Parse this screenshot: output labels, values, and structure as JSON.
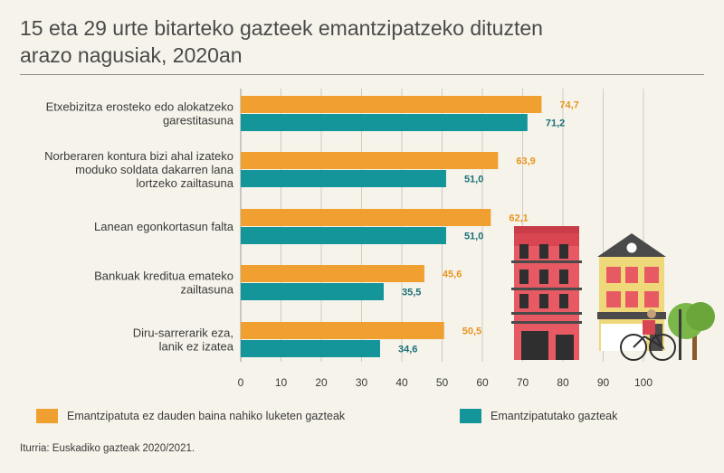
{
  "title_lines": [
    "15 eta 29 urte bitarteko gazteek emantzipatzeko dituzten",
    "arazo nagusiak, 2020an"
  ],
  "source": "Iturria: Euskadiko gazteak 2020/2021.",
  "colors": {
    "orange": "#f0a030",
    "teal": "#13959a",
    "value_orange": "#e8951e",
    "value_teal": "#1a6f79"
  },
  "chart_data": {
    "type": "bar",
    "orientation": "horizontal",
    "categories": [
      [
        "Etxebizitza erosteko edo alokatzeko",
        "garestitasuna"
      ],
      [
        "Norberaren kontura bizi ahal izateko",
        "moduko soldata dakarren lana",
        "lortzeko zailtasuna"
      ],
      [
        "Lanean egonkortasun falta"
      ],
      [
        "Bankuak kreditua emateko",
        "zailtasuna"
      ],
      [
        "Diru-sarrerarik eza,",
        "lanik ez izatea"
      ]
    ],
    "series": [
      {
        "name": "Emantzipatuta ez dauden baina nahiko luketen gazteak",
        "color": "#f0a030",
        "values": [
          74.7,
          63.9,
          62.1,
          45.6,
          50.5
        ],
        "labels": [
          "74,7",
          "63,9",
          "62,1",
          "45,6",
          "50,5"
        ]
      },
      {
        "name": "Emantzipatutako gazteak",
        "color": "#13959a",
        "values": [
          71.2,
          51.0,
          51.0,
          35.5,
          34.6
        ],
        "labels": [
          "71,2",
          "51,0",
          "51,0",
          "35,5",
          "34,6"
        ]
      }
    ],
    "xlim": [
      0,
      100
    ],
    "xticks": [
      0,
      10,
      20,
      30,
      40,
      50,
      60,
      70,
      80,
      90,
      100
    ],
    "grid": true,
    "legend_position": "bottom",
    "decoration": "illustration of buildings, a cyclist and a tree at the lower right"
  }
}
